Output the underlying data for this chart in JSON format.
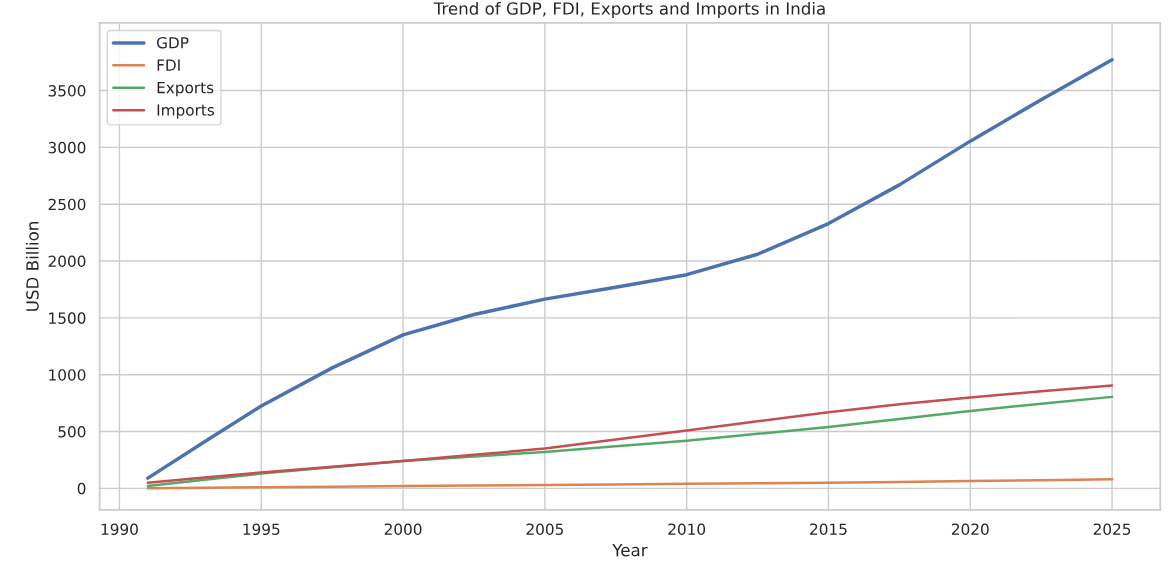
{
  "chart_data": {
    "type": "line",
    "title": "Trend of GDP, FDI, Exports and Imports in India",
    "xlabel": "Year",
    "ylabel": "USD Billion",
    "x": [
      1991,
      1993,
      1995,
      1997.5,
      2000,
      2002.5,
      2005,
      2007.5,
      2010,
      2012.5,
      2015,
      2017.5,
      2020,
      2022.5,
      2025
    ],
    "series": [
      {
        "name": "GDP",
        "color": "#4c72b0",
        "values": [
          90,
          410,
          725,
          1060,
          1350,
          1530,
          1665,
          1770,
          1880,
          2060,
          2330,
          2670,
          3055,
          3420,
          3770
        ]
      },
      {
        "name": "FDI",
        "color": "#dd8452",
        "values": [
          0,
          5,
          10,
          15,
          20,
          25,
          30,
          35,
          40,
          45,
          50,
          57,
          65,
          72,
          80
        ]
      },
      {
        "name": "Exports",
        "color": "#55a868",
        "values": [
          20,
          75,
          130,
          185,
          240,
          280,
          320,
          370,
          420,
          480,
          540,
          610,
          680,
          745,
          805
        ]
      },
      {
        "name": "Imports",
        "color": "#c44e52",
        "values": [
          50,
          95,
          140,
          190,
          240,
          295,
          350,
          430,
          510,
          590,
          670,
          740,
          800,
          855,
          905
        ]
      }
    ],
    "xlim": [
      1989.3,
      2026.7
    ],
    "ylim": [
      -190,
      4095
    ],
    "xticks": [
      1990,
      1995,
      2000,
      2005,
      2010,
      2015,
      2020,
      2025
    ],
    "yticks": [
      0,
      500,
      1000,
      1500,
      2000,
      2500,
      3000,
      3500
    ],
    "grid": true,
    "legend": "top left"
  }
}
